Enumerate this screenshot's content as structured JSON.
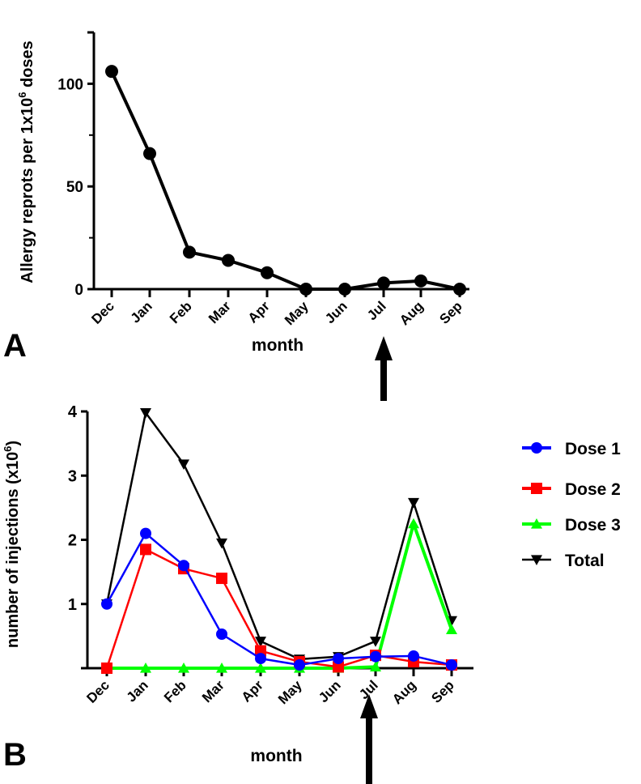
{
  "chart_data": [
    {
      "type": "line",
      "panel_label": "A",
      "title": "",
      "xlabel": "month",
      "ylabel_main": "Allergy reprots per 1x10",
      "ylabel_sup": "6",
      "ylabel_tail": " doses",
      "categories": [
        "Dec",
        "Jan",
        "Feb",
        "Mar",
        "Apr",
        "May",
        "Jun",
        "Jul",
        "Aug",
        "Sep"
      ],
      "ylim": [
        0,
        125
      ],
      "yticks": [
        0,
        50,
        100
      ],
      "yminor": [
        25,
        75
      ],
      "series": [
        {
          "name": "Allergy reports",
          "color": "#000000",
          "marker": "circle",
          "values": [
            106,
            66,
            18,
            14,
            8,
            0,
            0,
            3,
            4,
            0
          ]
        }
      ],
      "annotation": {
        "type": "arrow",
        "at": "Jul"
      }
    },
    {
      "type": "line",
      "panel_label": "B",
      "title": "",
      "xlabel": "month",
      "ylabel_main": "number of injections (x10",
      "ylabel_sup": "6",
      "ylabel_tail": ")",
      "categories": [
        "Dec",
        "Jan",
        "Feb",
        "Mar",
        "Apr",
        "May",
        "Jun",
        "Jul",
        "Aug",
        "Sep"
      ],
      "ylim": [
        0,
        4
      ],
      "yticks": [
        1,
        2,
        3,
        4
      ],
      "legend_position": "right",
      "series": [
        {
          "name": "Dose 1",
          "color": "#0000ff",
          "marker": "circle",
          "values": [
            1.0,
            2.1,
            1.6,
            0.53,
            0.15,
            0.05,
            0.15,
            0.18,
            0.19,
            0.05
          ]
        },
        {
          "name": "Dose 2",
          "color": "#ff0000",
          "marker": "square",
          "values": [
            0,
            1.85,
            1.55,
            1.4,
            0.27,
            0.1,
            0.02,
            0.2,
            0.1,
            0.05
          ]
        },
        {
          "name": "Dose 3",
          "color": "#00ff00",
          "marker": "triangle-up",
          "values": [
            0,
            0,
            0,
            0,
            0,
            0,
            0,
            0.02,
            2.25,
            0.6
          ]
        },
        {
          "name": "Total",
          "color": "#000000",
          "marker": "triangle-down",
          "values": [
            1.0,
            3.98,
            3.18,
            1.95,
            0.42,
            0.14,
            0.18,
            0.42,
            2.58,
            0.74
          ]
        }
      ],
      "annotation": {
        "type": "arrow",
        "at": "Jul"
      }
    }
  ]
}
